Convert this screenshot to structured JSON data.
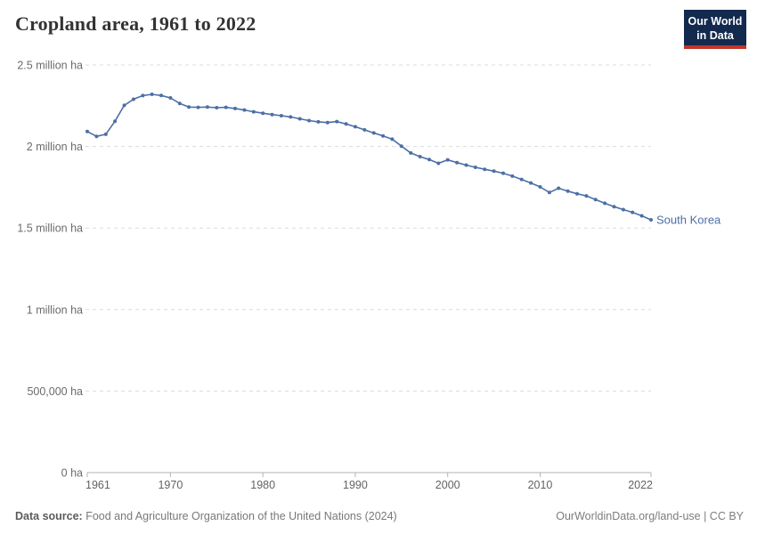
{
  "header": {
    "title": "Cropland area, 1961 to 2022"
  },
  "logo": {
    "line1": "Our World",
    "line2": "in Data",
    "bg_color": "#13294e",
    "accent_color": "#c0362c"
  },
  "chart_data": {
    "type": "line",
    "title": "Cropland area, 1961 to 2022",
    "xlabel": "",
    "ylabel": "",
    "xlim": [
      1961,
      2022
    ],
    "ylim": [
      0,
      2500000
    ],
    "grid": "horizontal-dashed",
    "legend_position": "end-of-line",
    "x_ticks": [
      1961,
      1970,
      1980,
      1990,
      2000,
      2010,
      2022
    ],
    "y_ticks": [
      {
        "value": 0,
        "label": "0 ha"
      },
      {
        "value": 500000,
        "label": "500,000 ha"
      },
      {
        "value": 1000000,
        "label": "1 million ha"
      },
      {
        "value": 1500000,
        "label": "1.5 million ha"
      },
      {
        "value": 2000000,
        "label": "2 million ha"
      },
      {
        "value": 2500000,
        "label": "2.5 million ha"
      }
    ],
    "years": [
      1961,
      1962,
      1963,
      1964,
      1965,
      1966,
      1967,
      1968,
      1969,
      1970,
      1971,
      1972,
      1973,
      1974,
      1975,
      1976,
      1977,
      1978,
      1979,
      1980,
      1981,
      1982,
      1983,
      1984,
      1985,
      1986,
      1987,
      1988,
      1989,
      1990,
      1991,
      1992,
      1993,
      1994,
      1995,
      1996,
      1997,
      1998,
      1999,
      2000,
      2001,
      2002,
      2003,
      2004,
      2005,
      2006,
      2007,
      2008,
      2009,
      2010,
      2011,
      2012,
      2013,
      2014,
      2015,
      2016,
      2017,
      2018,
      2019,
      2020,
      2021,
      2022
    ],
    "series": [
      {
        "name": "South Korea",
        "unit": "ha",
        "color": "#4c6fa5",
        "values": [
          2092000,
          2062000,
          2075000,
          2155000,
          2252000,
          2290000,
          2312000,
          2320000,
          2313000,
          2298000,
          2264000,
          2242000,
          2240000,
          2242000,
          2238000,
          2240000,
          2233000,
          2224000,
          2213000,
          2204000,
          2196000,
          2189000,
          2181000,
          2170000,
          2159000,
          2151000,
          2147000,
          2153000,
          2138000,
          2121000,
          2102000,
          2083000,
          2065000,
          2045000,
          2002000,
          1960000,
          1938000,
          1920000,
          1897000,
          1918000,
          1901000,
          1886000,
          1872000,
          1860000,
          1849000,
          1836000,
          1818000,
          1798000,
          1776000,
          1752000,
          1718000,
          1744000,
          1726000,
          1710000,
          1697000,
          1674000,
          1652000,
          1631000,
          1613000,
          1596000,
          1575000,
          1550000
        ]
      }
    ],
    "colors": {
      "grid": "#dcdcdc",
      "axis": "#b3b3b3",
      "y_tick_text": "#6b6b6b",
      "x_tick_text": "#636363"
    }
  },
  "footer": {
    "datasource_label": "Data source:",
    "datasource_text": " Food and Agriculture Organization of the United Nations (2024)",
    "right_text": "OurWorldinData.org/land-use | CC BY"
  }
}
